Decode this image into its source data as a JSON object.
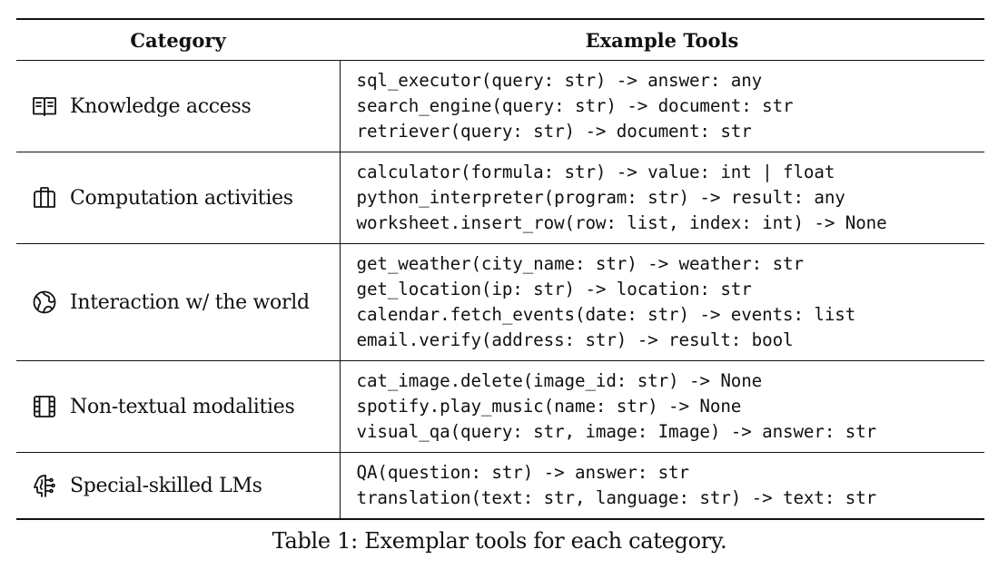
{
  "table": {
    "headers": {
      "category": "Category",
      "tools": "Example Tools"
    },
    "rows": [
      {
        "icon": "book-icon",
        "category": "Knowledge access",
        "tools": [
          "sql_executor(query: str) -> answer: any",
          "search_engine(query: str) -> document: str",
          "retriever(query: str) -> document: str"
        ]
      },
      {
        "icon": "columns-icon",
        "category": "Computation activities",
        "tools": [
          "calculator(formula: str) -> value: int | float",
          "python_interpreter(program: str) -> result: any",
          "worksheet.insert_row(row: list, index: int) -> None"
        ]
      },
      {
        "icon": "globe-icon",
        "category": "Interaction w/ the world",
        "tools": [
          "get_weather(city_name: str) -> weather: str",
          "get_location(ip: str) -> location: str",
          "calendar.fetch_events(date: str) -> events: list",
          "email.verify(address: str) -> result: bool"
        ]
      },
      {
        "icon": "film-icon",
        "category": "Non-textual modalities",
        "tools": [
          "cat_image.delete(image_id: str) -> None",
          "spotify.play_music(name: str) -> None",
          "visual_qa(query: str, image: Image) -> answer: str"
        ]
      },
      {
        "icon": "head-icon",
        "category": "Special-skilled LMs",
        "tools": [
          "QA(question: str) -> answer: str",
          "translation(text: str, language: str) -> text: str"
        ]
      }
    ]
  },
  "caption": "Table 1: Exemplar tools for each category."
}
